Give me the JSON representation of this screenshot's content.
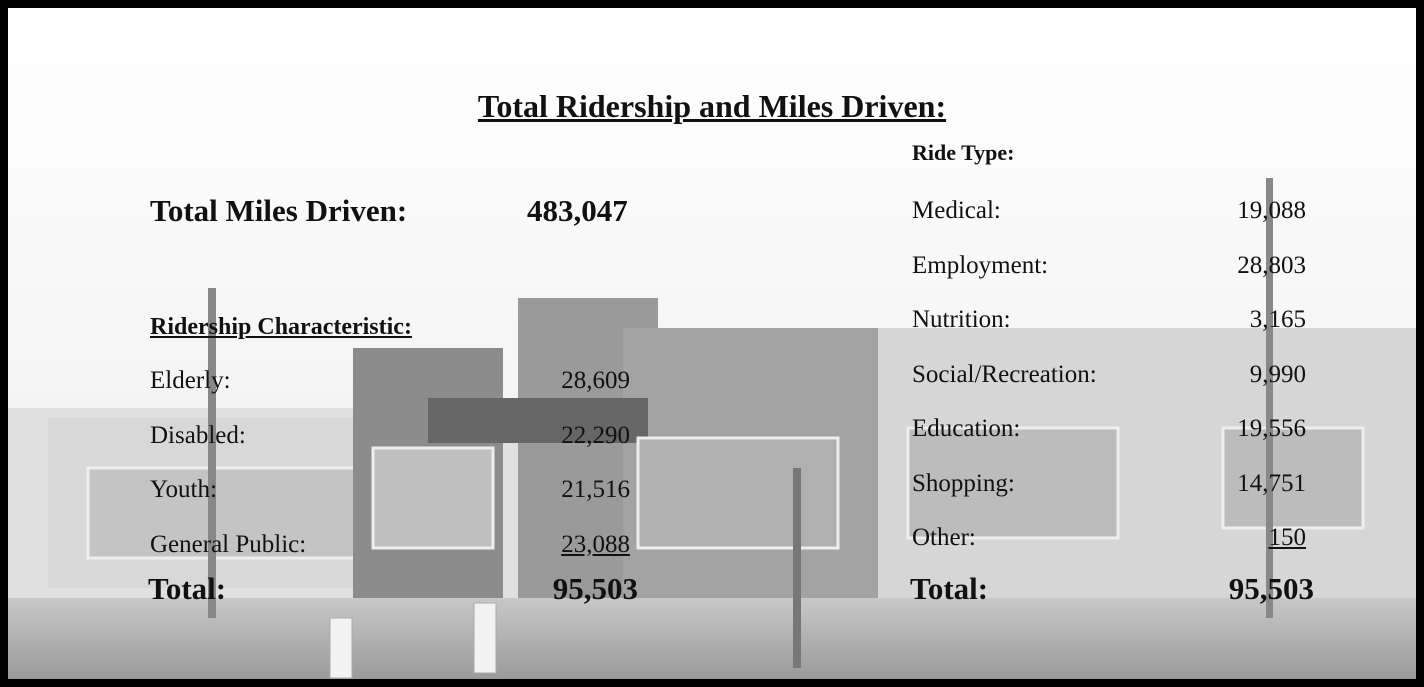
{
  "title": "Total Ridership and Miles Driven:",
  "miles": {
    "label": "Total Miles Driven:",
    "value": "483,047"
  },
  "ridership": {
    "heading": "Ridership Characteristic:",
    "rows": [
      [
        "Elderly:",
        "28,609"
      ],
      [
        "Disabled:",
        "22,290"
      ],
      [
        "Youth:",
        "21,516"
      ],
      [
        "General Public:",
        "23,088"
      ]
    ],
    "total": [
      "Total:",
      "95,503"
    ]
  },
  "ride_type": {
    "heading": "Ride Type:",
    "rows": [
      [
        "Medical:",
        "19,088"
      ],
      [
        "Employment:",
        "28,803"
      ],
      [
        "Nutrition:",
        "3,165"
      ],
      [
        "Social/Recreation:",
        "9,990"
      ],
      [
        "Education:",
        "19,556"
      ],
      [
        "Shopping:",
        "14,751"
      ],
      [
        "Other:",
        "150"
      ]
    ],
    "total": [
      "Total:",
      "95,503"
    ]
  }
}
